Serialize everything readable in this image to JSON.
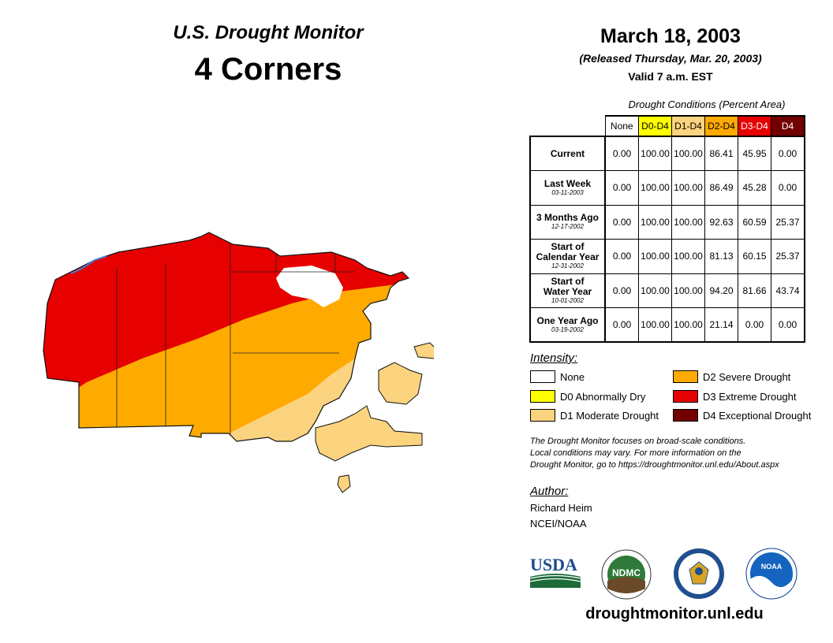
{
  "header": {
    "title": "U.S. Drought Monitor",
    "region": "4 Corners",
    "date": "March 18, 2003",
    "released": "(Released Thursday, Mar. 20, 2003)",
    "valid": "Valid 7 a.m. EST"
  },
  "table": {
    "caption": "Drought Conditions (Percent Area)",
    "columns": [
      {
        "label": "None",
        "bg": "#ffffff",
        "fg": "#000000"
      },
      {
        "label": "D0-D4",
        "bg": "#ffff00",
        "fg": "#000000"
      },
      {
        "label": "D1-D4",
        "bg": "#fcd37f",
        "fg": "#000000"
      },
      {
        "label": "D2-D4",
        "bg": "#ffaa00",
        "fg": "#000000"
      },
      {
        "label": "D3-D4",
        "bg": "#e60000",
        "fg": "#ffffff"
      },
      {
        "label": "D4",
        "bg": "#730000",
        "fg": "#ffffff"
      }
    ],
    "rows": [
      {
        "label": "Current",
        "date": "",
        "values": [
          "0.00",
          "100.00",
          "100.00",
          "86.41",
          "45.95",
          "0.00"
        ]
      },
      {
        "label": "Last Week",
        "date": "03-11-2003",
        "values": [
          "0.00",
          "100.00",
          "100.00",
          "86.49",
          "45.28",
          "0.00"
        ]
      },
      {
        "label": "3 Months Ago",
        "date": "12-17-2002",
        "values": [
          "0.00",
          "100.00",
          "100.00",
          "92.63",
          "60.59",
          "25.37"
        ]
      },
      {
        "label": "Start of Calendar Year",
        "date": "12-31-2002",
        "values": [
          "0.00",
          "100.00",
          "100.00",
          "81.13",
          "60.15",
          "25.37"
        ]
      },
      {
        "label": "Start of Water Year",
        "date": "10-01-2002",
        "values": [
          "0.00",
          "100.00",
          "100.00",
          "94.20",
          "81.66",
          "43.74"
        ]
      },
      {
        "label": "One Year Ago",
        "date": "03-19-2002",
        "values": [
          "0.00",
          "100.00",
          "100.00",
          "21.14",
          "0.00",
          "0.00"
        ]
      }
    ]
  },
  "legend": {
    "title": "Intensity:",
    "items": [
      {
        "label": "None",
        "color": "#ffffff"
      },
      {
        "label": "D0 Abnormally Dry",
        "color": "#ffff00"
      },
      {
        "label": "D1 Moderate Drought",
        "color": "#fcd37f"
      },
      {
        "label": "D2 Severe Drought",
        "color": "#ffaa00"
      },
      {
        "label": "D3 Extreme Drought",
        "color": "#e60000"
      },
      {
        "label": "D4 Exceptional Drought",
        "color": "#730000"
      }
    ]
  },
  "note": {
    "line1": "The Drought Monitor focuses on broad-scale conditions.",
    "line2": "Local conditions may vary. For more information on the",
    "line3": "Drought Monitor, go to https://droughtmonitor.unl.edu/About.aspx"
  },
  "author": {
    "title": "Author:",
    "name": "Richard Heim",
    "org": "NCEI/NOAA"
  },
  "logos": {
    "usda": "USDA",
    "ndmc": "NDMC",
    "noaa": "NOAA"
  },
  "footer": {
    "url": "droughtmonitor.unl.edu"
  },
  "map_colors": {
    "d1": "#fcd37f",
    "d2": "#ffaa00",
    "d3": "#e60000",
    "water": "#3b7fe0"
  }
}
